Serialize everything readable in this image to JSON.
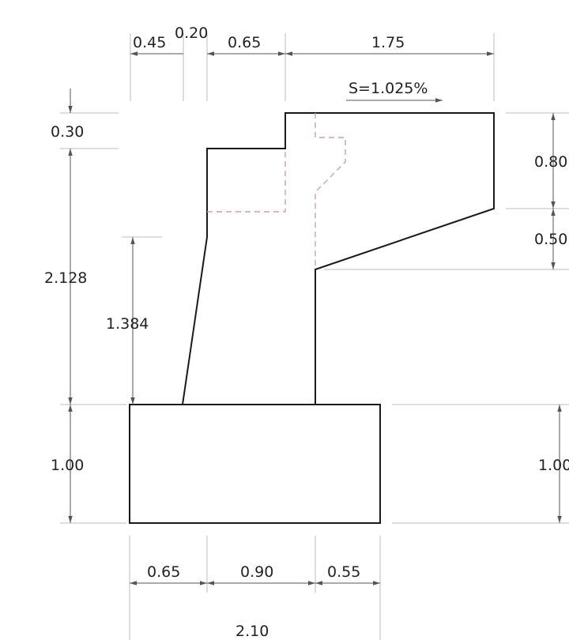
{
  "colors": {
    "background": "#ffffff",
    "outline": "#1a1a1a",
    "extension_line": "#b8bcc4",
    "dimension_line": "#555555",
    "hidden_line": "#c9a0b8",
    "text": "#222222"
  },
  "slope_label": "S=1.025%",
  "top_dims": {
    "d1": "0.45",
    "d2": "0.20",
    "d3": "0.65",
    "d4": "1.75"
  },
  "left_dims": {
    "top": "0.30",
    "stem": "2.128",
    "stem_inner": "1.384",
    "footing": "1.00"
  },
  "right_dims": {
    "upper": "0.80",
    "lower": "0.50",
    "footing": "1.00"
  },
  "bottom_dims": {
    "d1": "0.65",
    "d2": "0.90",
    "d3": "0.55",
    "total": "2.10"
  }
}
